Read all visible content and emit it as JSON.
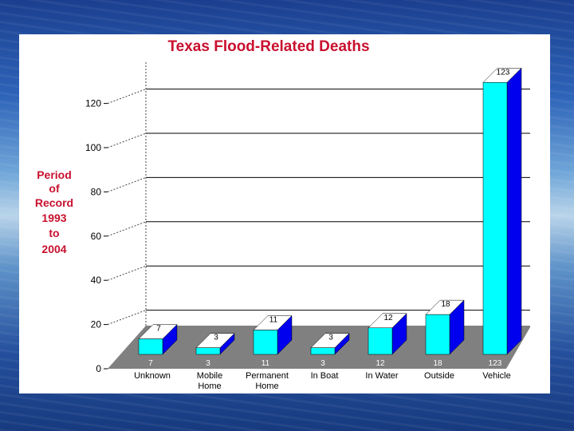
{
  "chart_data": {
    "type": "bar",
    "title": "Texas Flood-Related Deaths",
    "ylabel_lines": [
      "Period",
      "of",
      "Record",
      "1993",
      "to",
      "2004"
    ],
    "ylim": [
      0,
      120
    ],
    "yticks": [
      "0",
      "20",
      "40",
      "60",
      "80",
      "100",
      "120"
    ],
    "categories": [
      [
        "Unknown"
      ],
      [
        "Mobile",
        "Home"
      ],
      [
        "Permanent",
        "Home"
      ],
      [
        "In Boat"
      ],
      [
        "In Water"
      ],
      [
        "Outside"
      ],
      [
        "Vehicle"
      ]
    ],
    "values": [
      7,
      3,
      11,
      3,
      12,
      18,
      123
    ],
    "colors": {
      "bar_front": "#00ffff",
      "bar_side": "#0000ee",
      "floor": "#808080"
    },
    "grid": true
  }
}
